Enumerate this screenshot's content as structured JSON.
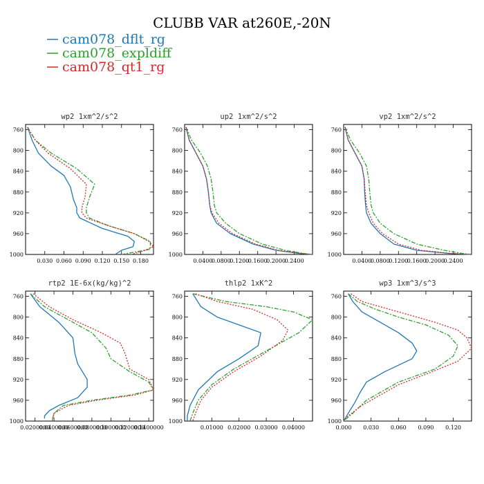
{
  "title": "CLUBB VAR at260E,-20N",
  "legend": [
    {
      "name": "cam078_dflt_rg",
      "color": "#1f77b4"
    },
    {
      "name": "cam078_expldiff",
      "color": "#2ca02c"
    },
    {
      "name": "cam078_qt1_rg",
      "color": "#d62728"
    }
  ],
  "chart_data": [
    {
      "type": "line",
      "title": "wp2   1xm^2/s^2",
      "xlim": [
        0.0,
        0.2
      ],
      "xticks": [
        0.03,
        0.06,
        0.09,
        0.12,
        0.15,
        0.18
      ],
      "xtick_labels": [
        "0.030",
        "0.060",
        "0.090",
        "0.120",
        "0.150",
        "0.180"
      ],
      "ylim": [
        1000,
        750
      ],
      "yticks": [
        760,
        800,
        840,
        880,
        920,
        960,
        1000
      ],
      "series": [
        {
          "name": "cam078_dflt_rg",
          "color": "#1f77b4",
          "dash": "",
          "x": [
            0.003,
            0.01,
            0.02,
            0.04,
            0.06,
            0.07,
            0.075,
            0.08,
            0.08,
            0.085,
            0.12,
            0.16,
            0.17,
            0.168,
            0.15,
            0.14
          ],
          "y": [
            755,
            780,
            805,
            830,
            848,
            870,
            895,
            910,
            920,
            930,
            950,
            965,
            975,
            985,
            992,
            1000
          ]
        },
        {
          "name": "cam078_expldiff",
          "color": "#2ca02c",
          "dash": "6,2,2,2",
          "x": [
            0.003,
            0.015,
            0.04,
            0.08,
            0.108,
            0.1,
            0.095,
            0.095,
            0.1,
            0.13,
            0.17,
            0.195,
            0.195,
            0.15
          ],
          "y": [
            755,
            780,
            805,
            835,
            865,
            890,
            910,
            920,
            930,
            945,
            960,
            975,
            990,
            1000
          ]
        },
        {
          "name": "cam078_qt1_rg",
          "color": "#d62728",
          "dash": "2,2",
          "x": [
            0.003,
            0.015,
            0.035,
            0.07,
            0.095,
            0.093,
            0.088,
            0.088,
            0.095,
            0.13,
            0.17,
            0.193,
            0.2,
            0.185,
            0.165
          ],
          "y": [
            755,
            780,
            805,
            835,
            865,
            890,
            910,
            920,
            930,
            945,
            960,
            975,
            985,
            993,
            1000
          ]
        }
      ]
    },
    {
      "type": "line",
      "title": "up2   1xm^2/s^2",
      "xlim": [
        0.0,
        0.28
      ],
      "xticks": [
        0.04,
        0.08,
        0.12,
        0.16,
        0.2,
        0.24
      ],
      "xtick_labels": [
        "0.0400",
        "0.0800",
        "0.1200",
        "0.1600",
        "0.2000",
        "0.2400"
      ],
      "ylim": [
        1000,
        750
      ],
      "yticks": [
        760,
        800,
        840,
        880,
        920,
        960,
        1000
      ],
      "series": [
        {
          "name": "cam078_dflt_rg",
          "color": "#1f77b4",
          "dash": "",
          "x": [
            0.003,
            0.01,
            0.025,
            0.04,
            0.048,
            0.052,
            0.055,
            0.058,
            0.07,
            0.1,
            0.15,
            0.2,
            0.25,
            0.28
          ],
          "y": [
            755,
            780,
            805,
            830,
            855,
            880,
            905,
            920,
            940,
            960,
            980,
            992,
            998,
            1000
          ]
        },
        {
          "name": "cam078_expldiff",
          "color": "#2ca02c",
          "dash": "6,2,2,2",
          "x": [
            0.003,
            0.015,
            0.035,
            0.05,
            0.058,
            0.062,
            0.065,
            0.07,
            0.09,
            0.12,
            0.17,
            0.22,
            0.26,
            0.28
          ],
          "y": [
            755,
            780,
            805,
            830,
            855,
            880,
            905,
            920,
            940,
            960,
            980,
            992,
            998,
            1000
          ]
        },
        {
          "name": "cam078_qt1_rg",
          "color": "#d62728",
          "dash": "2,2",
          "x": [
            0.003,
            0.01,
            0.025,
            0.04,
            0.048,
            0.052,
            0.055,
            0.06,
            0.075,
            0.105,
            0.155,
            0.205,
            0.255,
            0.28
          ],
          "y": [
            755,
            780,
            805,
            830,
            855,
            880,
            905,
            920,
            940,
            960,
            980,
            992,
            998,
            1000
          ]
        }
      ]
    },
    {
      "type": "line",
      "title": "vp2   1xm^2/s^2",
      "xlim": [
        0.0,
        0.28
      ],
      "xticks": [
        0.04,
        0.08,
        0.12,
        0.16,
        0.2,
        0.24
      ],
      "xtick_labels": [
        "0.0400",
        "0.0800",
        "0.1200",
        "0.1600",
        "0.2000",
        "0.2400"
      ],
      "ylim": [
        1000,
        750
      ],
      "yticks": [
        760,
        800,
        840,
        880,
        920,
        960,
        1000
      ],
      "series": [
        {
          "name": "cam078_dflt_rg",
          "color": "#1f77b4",
          "dash": "",
          "x": [
            0.003,
            0.01,
            0.025,
            0.04,
            0.045,
            0.046,
            0.048,
            0.05,
            0.06,
            0.08,
            0.11,
            0.16,
            0.23,
            0.28
          ],
          "y": [
            755,
            780,
            805,
            830,
            855,
            880,
            905,
            920,
            940,
            960,
            980,
            992,
            998,
            1000
          ]
        },
        {
          "name": "cam078_expldiff",
          "color": "#2ca02c",
          "dash": "6,2,2,2",
          "x": [
            0.003,
            0.015,
            0.035,
            0.05,
            0.055,
            0.057,
            0.06,
            0.065,
            0.08,
            0.11,
            0.16,
            0.22,
            0.26,
            0.28
          ],
          "y": [
            755,
            780,
            805,
            830,
            855,
            880,
            905,
            920,
            940,
            960,
            980,
            992,
            998,
            1000
          ]
        },
        {
          "name": "cam078_qt1_rg",
          "color": "#d62728",
          "dash": "2,2",
          "x": [
            0.003,
            0.01,
            0.025,
            0.04,
            0.045,
            0.047,
            0.05,
            0.055,
            0.065,
            0.085,
            0.12,
            0.17,
            0.235,
            0.28
          ],
          "y": [
            755,
            780,
            805,
            830,
            855,
            880,
            905,
            920,
            940,
            960,
            980,
            992,
            998,
            1000
          ]
        }
      ]
    },
    {
      "type": "line",
      "title": "rtp2   1E-6x(kg/kg)^2",
      "xlim": [
        0.01,
        0.145
      ],
      "xticks": [
        0.02,
        0.04,
        0.06,
        0.08,
        0.1,
        0.12,
        0.14
      ],
      "xtick_labels": [
        "0.0200000",
        "0.0400000",
        "0.0600000",
        "0.0800000",
        "0.1000000",
        "0.1200000",
        "0.1400000"
      ],
      "ylim": [
        1000,
        750
      ],
      "yticks": [
        760,
        800,
        840,
        880,
        920,
        960,
        1000
      ],
      "series": [
        {
          "name": "cam078_dflt_rg",
          "color": "#1f77b4",
          "dash": "",
          "x": [
            0.015,
            0.025,
            0.045,
            0.06,
            0.062,
            0.065,
            0.075,
            0.075,
            0.065,
            0.045,
            0.035,
            0.03,
            0.03
          ],
          "y": [
            755,
            780,
            810,
            840,
            870,
            890,
            920,
            935,
            955,
            970,
            980,
            990,
            995
          ]
        },
        {
          "name": "cam078_expldiff",
          "color": "#2ca02c",
          "dash": "6,2,2,2",
          "x": [
            0.015,
            0.03,
            0.055,
            0.08,
            0.095,
            0.1,
            0.12,
            0.14,
            0.145,
            0.12,
            0.08,
            0.05,
            0.04,
            0.038
          ],
          "y": [
            755,
            780,
            805,
            830,
            860,
            880,
            905,
            925,
            940,
            950,
            960,
            970,
            985,
            1000
          ]
        },
        {
          "name": "cam078_qt1_rg",
          "color": "#d62728",
          "dash": "2,2",
          "x": [
            0.018,
            0.035,
            0.06,
            0.09,
            0.11,
            0.115,
            0.12,
            0.14,
            0.145,
            0.125,
            0.085,
            0.055,
            0.04,
            0.038
          ],
          "y": [
            755,
            780,
            805,
            830,
            850,
            870,
            900,
            920,
            940,
            950,
            960,
            970,
            985,
            1000
          ]
        }
      ]
    },
    {
      "type": "line",
      "title": "thlp2   1xK^2",
      "xlim": [
        0.0,
        0.047
      ],
      "xticks": [
        0.01,
        0.02,
        0.03,
        0.04
      ],
      "xtick_labels": [
        "0.01000",
        "0.02000",
        "0.03000",
        "0.04000"
      ],
      "ylim": [
        1000,
        750
      ],
      "yticks": [
        760,
        800,
        840,
        880,
        920,
        960,
        1000
      ],
      "series": [
        {
          "name": "cam078_dflt_rg",
          "color": "#1f77b4",
          "dash": "",
          "x": [
            0.003,
            0.006,
            0.012,
            0.02,
            0.028,
            0.027,
            0.02,
            0.012,
            0.005,
            0.002,
            0.001,
            0.001
          ],
          "y": [
            755,
            780,
            800,
            815,
            830,
            855,
            880,
            905,
            940,
            970,
            990,
            1000
          ]
        },
        {
          "name": "cam078_expldiff",
          "color": "#2ca02c",
          "dash": "6,2,2,2",
          "x": [
            0.003,
            0.015,
            0.03,
            0.04,
            0.047,
            0.042,
            0.03,
            0.018,
            0.01,
            0.005,
            0.003,
            0.002
          ],
          "y": [
            755,
            770,
            780,
            790,
            805,
            830,
            865,
            900,
            930,
            960,
            985,
            1000
          ]
        },
        {
          "name": "cam078_qt1_rg",
          "color": "#d62728",
          "dash": "2,2",
          "x": [
            0.004,
            0.012,
            0.025,
            0.034,
            0.038,
            0.036,
            0.028,
            0.018,
            0.01,
            0.006,
            0.004,
            0.003
          ],
          "y": [
            755,
            770,
            785,
            805,
            825,
            845,
            875,
            905,
            935,
            960,
            985,
            1000
          ]
        }
      ]
    },
    {
      "type": "line",
      "title": "wp3   1xm^3/s^3",
      "xlim": [
        0.0,
        0.14
      ],
      "xticks": [
        0.0,
        0.03,
        0.06,
        0.09,
        0.12
      ],
      "xtick_labels": [
        "0.000",
        "0.030",
        "0.060",
        "0.090",
        "0.120"
      ],
      "ylim": [
        1000,
        750
      ],
      "yticks": [
        760,
        800,
        840,
        880,
        920,
        960,
        1000
      ],
      "series": [
        {
          "name": "cam078_dflt_rg",
          "color": "#1f77b4",
          "dash": "",
          "x": [
            0.005,
            0.01,
            0.02,
            0.04,
            0.06,
            0.075,
            0.08,
            0.075,
            0.045,
            0.025,
            0.018,
            0.012,
            0.005,
            0.0
          ],
          "y": [
            755,
            770,
            790,
            810,
            830,
            850,
            865,
            880,
            905,
            925,
            945,
            965,
            985,
            1000
          ]
        },
        {
          "name": "cam078_expldiff",
          "color": "#2ca02c",
          "dash": "6,2,2,2",
          "x": [
            0.005,
            0.015,
            0.035,
            0.06,
            0.09,
            0.115,
            0.125,
            0.12,
            0.1,
            0.06,
            0.04,
            0.025,
            0.01,
            0.0
          ],
          "y": [
            755,
            770,
            785,
            800,
            815,
            835,
            855,
            875,
            900,
            925,
            945,
            960,
            985,
            1000
          ]
        },
        {
          "name": "cam078_qt1_rg",
          "color": "#d62728",
          "dash": "2,2",
          "x": [
            0.008,
            0.02,
            0.04,
            0.07,
            0.1,
            0.125,
            0.135,
            0.14,
            0.125,
            0.09,
            0.06,
            0.04,
            0.02,
            0.005,
            0.0
          ],
          "y": [
            755,
            770,
            780,
            795,
            810,
            825,
            840,
            860,
            885,
            910,
            930,
            950,
            970,
            990,
            1000
          ]
        }
      ]
    }
  ]
}
